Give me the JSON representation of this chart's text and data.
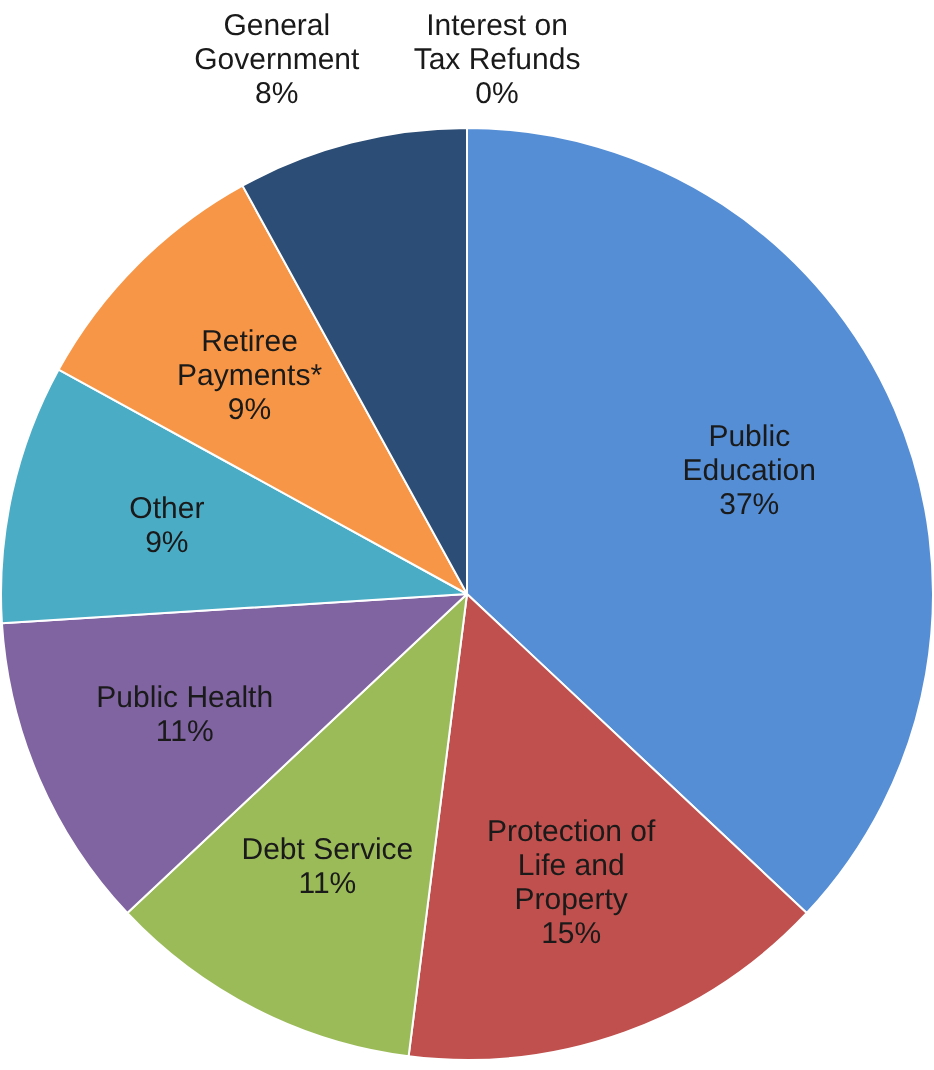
{
  "chart_data": {
    "type": "pie",
    "categories": [
      "Public Education",
      "Protection of Life and Property",
      "Debt Service",
      "Public Health",
      "Other",
      "Retiree Payments*",
      "General Government",
      "Interest on Tax Refunds"
    ],
    "values": [
      37,
      15,
      11,
      11,
      9,
      9,
      8,
      0
    ],
    "colors": [
      "#558ed5",
      "#c0504d",
      "#9bbb59",
      "#8064a2",
      "#4bacc6",
      "#f79646",
      "#2c4d75",
      "#7f7f7f"
    ],
    "value_labels": [
      "37%",
      "15%",
      "11%",
      "11%",
      "9%",
      "9%",
      "8%",
      "0%"
    ],
    "legend": false
  }
}
